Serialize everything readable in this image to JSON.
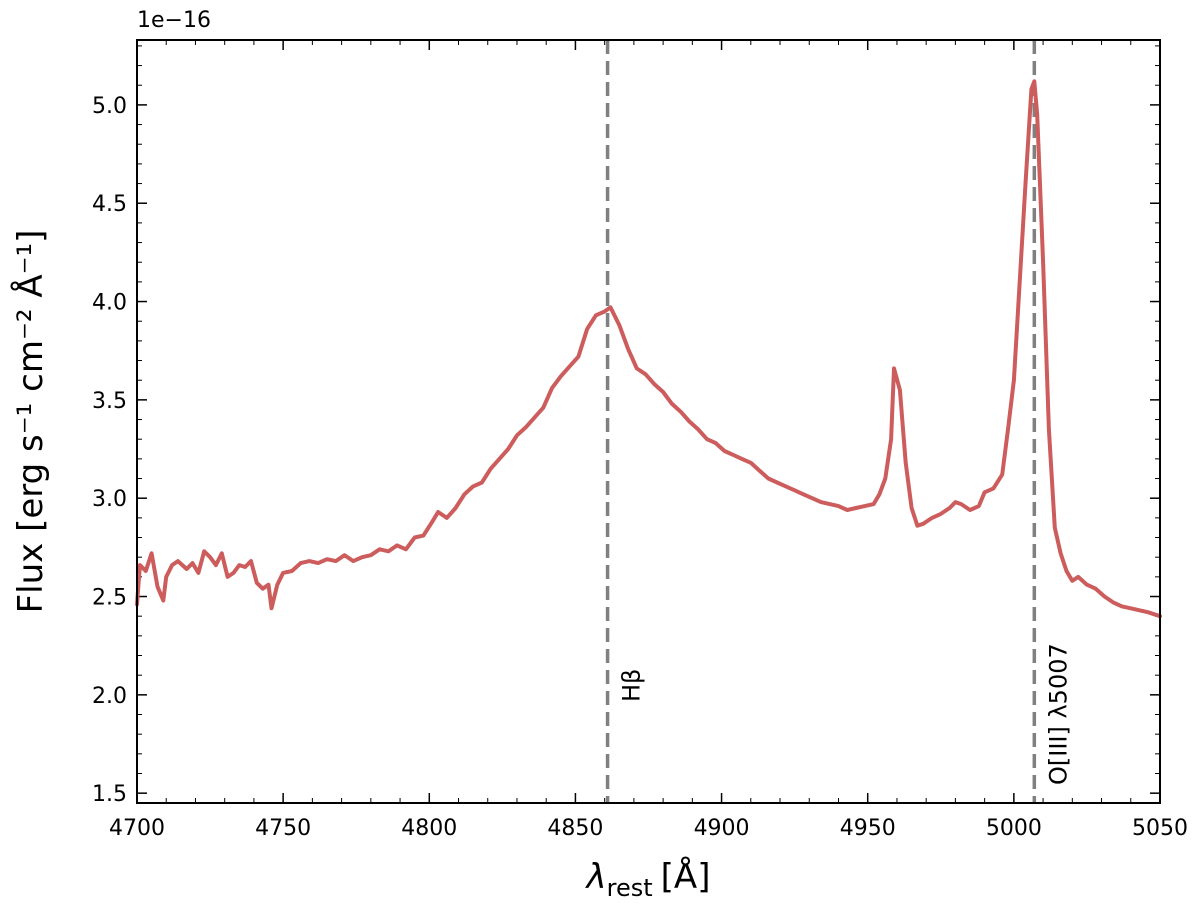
{
  "chart_data": {
    "type": "line",
    "xlabel_symbol": "λ",
    "xlabel_subscript": "rest",
    "xlabel_unit": "[Å]",
    "ylabel": "Flux [erg s⁻¹ cm⁻² Å⁻¹]",
    "offset_text": "1e−16",
    "xlim": [
      4700,
      5050
    ],
    "ylim": [
      1.45,
      5.33
    ],
    "x_ticks": [
      4700,
      4750,
      4800,
      4850,
      4900,
      4950,
      5000,
      5050
    ],
    "x_tick_labels": [
      "4700",
      "4750",
      "4800",
      "4850",
      "4900",
      "4950",
      "5000",
      "5050"
    ],
    "y_ticks": [
      1.5,
      2.0,
      2.5,
      3.0,
      3.5,
      4.0,
      4.5,
      5.0
    ],
    "y_tick_labels": [
      "1.5",
      "2.0",
      "2.5",
      "3.0",
      "3.5",
      "4.0",
      "4.5",
      "5.0"
    ],
    "grid": false,
    "series": [
      {
        "color": "#cd5c5c",
        "x": [
          4700,
          4701,
          4703,
          4705,
          4707,
          4709,
          4710,
          4712,
          4714,
          4717,
          4719,
          4721,
          4723,
          4725,
          4727,
          4729,
          4731,
          4733,
          4735,
          4737,
          4739,
          4741,
          4743,
          4745,
          4746,
          4748,
          4750,
          4753,
          4756,
          4759,
          4762,
          4765,
          4768,
          4771,
          4774,
          4777,
          4780,
          4783,
          4786,
          4789,
          4792,
          4795,
          4798,
          4801,
          4803,
          4806,
          4809,
          4812,
          4815,
          4818,
          4821,
          4824,
          4827,
          4830,
          4833,
          4836,
          4839,
          4842,
          4845,
          4848,
          4851,
          4854,
          4857,
          4860,
          4862,
          4865,
          4868,
          4871,
          4874,
          4877,
          4880,
          4883,
          4886,
          4889,
          4892,
          4895,
          4898,
          4901,
          4904,
          4907,
          4910,
          4913,
          4916,
          4919,
          4922,
          4925,
          4928,
          4931,
          4934,
          4937,
          4940,
          4943,
          4946,
          4949,
          4952,
          4954,
          4956,
          4958,
          4959,
          4961,
          4963,
          4965,
          4967,
          4969,
          4972,
          4975,
          4978,
          4980,
          4982,
          4985,
          4988,
          4990,
          4993,
          4996,
          4998,
          5000,
          5002,
          5004,
          5006,
          5007,
          5008,
          5010,
          5012,
          5014,
          5016,
          5018,
          5020,
          5022,
          5025,
          5028,
          5031,
          5034,
          5037,
          5040,
          5043,
          5046,
          5050
        ],
        "y": [
          2.46,
          2.66,
          2.63,
          2.72,
          2.55,
          2.48,
          2.6,
          2.66,
          2.68,
          2.64,
          2.67,
          2.62,
          2.73,
          2.7,
          2.66,
          2.72,
          2.6,
          2.62,
          2.66,
          2.65,
          2.68,
          2.57,
          2.54,
          2.56,
          2.44,
          2.56,
          2.62,
          2.63,
          2.67,
          2.68,
          2.67,
          2.69,
          2.68,
          2.71,
          2.68,
          2.7,
          2.71,
          2.74,
          2.73,
          2.76,
          2.74,
          2.8,
          2.81,
          2.88,
          2.93,
          2.9,
          2.95,
          3.02,
          3.06,
          3.08,
          3.15,
          3.2,
          3.25,
          3.32,
          3.36,
          3.41,
          3.46,
          3.56,
          3.62,
          3.67,
          3.72,
          3.86,
          3.93,
          3.95,
          3.97,
          3.88,
          3.76,
          3.66,
          3.63,
          3.58,
          3.54,
          3.48,
          3.44,
          3.39,
          3.35,
          3.3,
          3.28,
          3.24,
          3.22,
          3.2,
          3.18,
          3.14,
          3.1,
          3.08,
          3.06,
          3.04,
          3.02,
          3.0,
          2.98,
          2.97,
          2.96,
          2.94,
          2.95,
          2.96,
          2.97,
          3.02,
          3.1,
          3.3,
          3.66,
          3.55,
          3.18,
          2.95,
          2.86,
          2.87,
          2.9,
          2.92,
          2.95,
          2.98,
          2.97,
          2.94,
          2.96,
          3.03,
          3.05,
          3.12,
          3.35,
          3.6,
          4.1,
          4.6,
          5.08,
          5.12,
          4.95,
          4.2,
          3.35,
          2.85,
          2.72,
          2.63,
          2.58,
          2.6,
          2.56,
          2.54,
          2.5,
          2.47,
          2.45,
          2.44,
          2.43,
          2.42,
          2.4
        ]
      }
    ],
    "reference_lines": [
      {
        "x": 4861,
        "label": "Hβ",
        "color": "#808080"
      },
      {
        "x": 5007,
        "label": "O[III] λ5007",
        "color": "#808080"
      }
    ]
  }
}
